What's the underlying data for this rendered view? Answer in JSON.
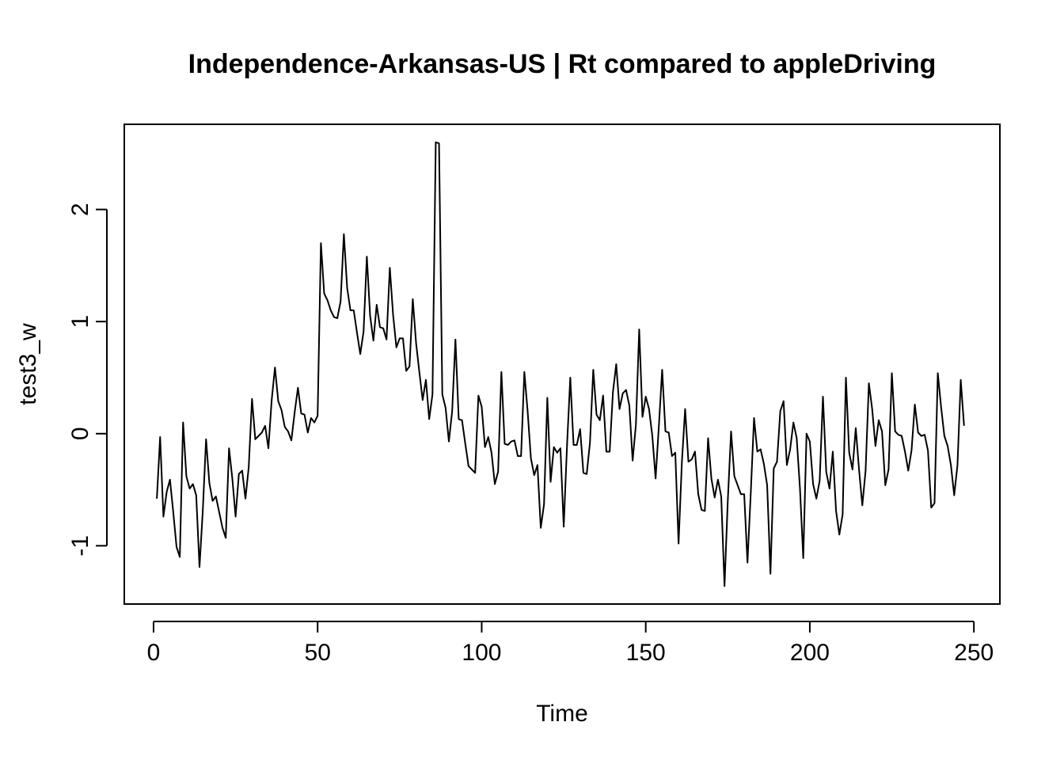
{
  "chart_data": {
    "type": "line",
    "title": "Independence-Arkansas-US | Rt compared to appleDriving",
    "xlabel": "Time",
    "ylabel": "test3_w",
    "xlim": [
      -8.92,
      257.92
    ],
    "ylim": [
      -1.52,
      2.76
    ],
    "x_ticks": [
      0,
      50,
      100,
      150,
      200,
      250
    ],
    "y_ticks": [
      -1,
      0,
      1,
      2
    ],
    "x_tick_labels": [
      "0",
      "50",
      "100",
      "150",
      "200",
      "250"
    ],
    "y_tick_labels": [
      "-1",
      "0",
      "1",
      "2"
    ],
    "grid": false,
    "line_color": "#000000",
    "x_start": 1,
    "values": [
      -0.58,
      -0.03,
      -0.74,
      -0.52,
      -0.41,
      -0.7,
      -1.01,
      -1.1,
      0.1,
      -0.38,
      -0.49,
      -0.45,
      -0.55,
      -1.19,
      -0.69,
      -0.05,
      -0.44,
      -0.6,
      -0.56,
      -0.7,
      -0.84,
      -0.93,
      -0.13,
      -0.4,
      -0.74,
      -0.36,
      -0.33,
      -0.58,
      -0.3,
      0.31,
      -0.05,
      -0.02,
      0.01,
      0.07,
      -0.13,
      0.3,
      0.59,
      0.29,
      0.21,
      0.06,
      0.02,
      -0.06,
      0.19,
      0.41,
      0.18,
      0.17,
      0.01,
      0.14,
      0.1,
      0.16,
      1.7,
      1.25,
      1.19,
      1.1,
      1.04,
      1.03,
      1.18,
      1.78,
      1.3,
      1.1,
      1.1,
      0.9,
      0.71,
      0.91,
      1.58,
      1.05,
      0.83,
      1.15,
      0.95,
      0.94,
      0.84,
      1.48,
      1.06,
      0.77,
      0.85,
      0.85,
      0.56,
      0.6,
      1.2,
      0.81,
      0.55,
      0.3,
      0.48,
      0.13,
      0.35,
      2.6,
      2.59,
      0.35,
      0.23,
      -0.07,
      0.2,
      0.84,
      0.13,
      0.12,
      -0.09,
      -0.29,
      -0.32,
      -0.35,
      0.34,
      0.24,
      -0.12,
      -0.03,
      -0.17,
      -0.45,
      -0.34,
      0.55,
      -0.09,
      -0.1,
      -0.07,
      -0.06,
      -0.2,
      -0.2,
      0.55,
      0.2,
      -0.22,
      -0.37,
      -0.28,
      -0.84,
      -0.63,
      0.32,
      -0.43,
      -0.12,
      -0.17,
      -0.13,
      -0.83,
      -0.11,
      0.5,
      -0.1,
      -0.1,
      0.04,
      -0.35,
      -0.36,
      -0.08,
      0.57,
      0.17,
      0.12,
      0.34,
      -0.16,
      -0.16,
      0.37,
      0.62,
      0.22,
      0.36,
      0.39,
      0.25,
      -0.24,
      0.08,
      0.93,
      0.15,
      0.33,
      0.22,
      -0.02,
      -0.4,
      0.07,
      0.57,
      0.02,
      0.01,
      -0.2,
      -0.17,
      -0.98,
      -0.26,
      0.22,
      -0.25,
      -0.23,
      -0.16,
      -0.54,
      -0.68,
      -0.69,
      -0.04,
      -0.4,
      -0.57,
      -0.41,
      -0.56,
      -1.36,
      -0.6,
      0.02,
      -0.38,
      -0.46,
      -0.54,
      -0.54,
      -1.15,
      -0.53,
      0.14,
      -0.16,
      -0.14,
      -0.27,
      -0.46,
      -1.25,
      -0.31,
      -0.25,
      0.2,
      0.29,
      -0.28,
      -0.14,
      0.1,
      -0.04,
      -0.49,
      -1.11,
      0.0,
      -0.07,
      -0.45,
      -0.58,
      -0.42,
      0.33,
      -0.34,
      -0.49,
      -0.16,
      -0.69,
      -0.9,
      -0.72,
      0.5,
      -0.17,
      -0.32,
      0.05,
      -0.32,
      -0.64,
      -0.33,
      0.45,
      0.22,
      -0.11,
      0.12,
      0.02,
      -0.46,
      -0.32,
      0.54,
      0.02,
      -0.01,
      -0.02,
      -0.16,
      -0.33,
      -0.15,
      0.26,
      0.01,
      -0.02,
      -0.01,
      -0.15,
      -0.66,
      -0.62,
      0.54,
      0.24,
      -0.02,
      -0.11,
      -0.28,
      -0.55,
      -0.28,
      0.48,
      0.07
    ]
  }
}
